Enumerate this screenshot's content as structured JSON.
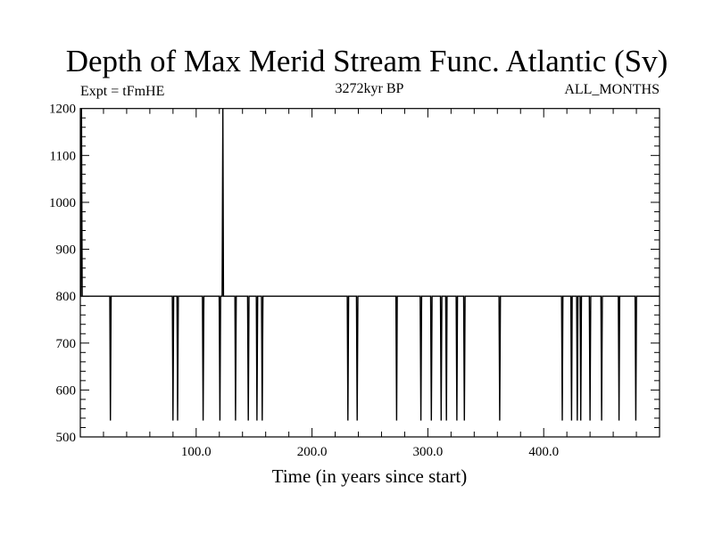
{
  "chart_data": {
    "type": "line",
    "title": "Depth of Max Merid Stream Func. Atlantic (Sv)",
    "subtitle_left": "Expt = tFmHE",
    "subtitle_center": "3272kyr BP",
    "subtitle_right": "ALL_MONTHS",
    "xlabel": "Time (in years since start)",
    "ylabel": "",
    "xlim": [
      0,
      500
    ],
    "ylim": [
      500,
      1200
    ],
    "x_ticks": [
      100,
      200,
      300,
      400
    ],
    "x_tick_labels": [
      "100.0",
      "200.0",
      "300.0",
      "400.0"
    ],
    "x_minor_step": 20,
    "y_ticks": [
      500,
      600,
      700,
      800,
      900,
      1000,
      1100,
      1200
    ],
    "y_tick_labels": [
      "500",
      "600",
      "700",
      "800",
      "900",
      "1000",
      "1100",
      "1200"
    ],
    "y_minor_step": 20,
    "grid": false,
    "baseline": 800,
    "spikes": [
      {
        "x": 1,
        "y": 1200
      },
      {
        "x": 123,
        "y": 1200
      }
    ],
    "dips": [
      {
        "x": 26,
        "y": 535
      },
      {
        "x": 80,
        "y": 535
      },
      {
        "x": 84,
        "y": 535
      },
      {
        "x": 106,
        "y": 535
      },
      {
        "x": 120.5,
        "y": 535
      },
      {
        "x": 134,
        "y": 535
      },
      {
        "x": 145,
        "y": 535
      },
      {
        "x": 152.5,
        "y": 535
      },
      {
        "x": 157,
        "y": 535
      },
      {
        "x": 231,
        "y": 535
      },
      {
        "x": 239,
        "y": 535
      },
      {
        "x": 273,
        "y": 535
      },
      {
        "x": 294,
        "y": 535
      },
      {
        "x": 303,
        "y": 535
      },
      {
        "x": 311.5,
        "y": 535
      },
      {
        "x": 316,
        "y": 535
      },
      {
        "x": 325,
        "y": 535
      },
      {
        "x": 331.5,
        "y": 535
      },
      {
        "x": 362,
        "y": 535
      },
      {
        "x": 416,
        "y": 535
      },
      {
        "x": 424,
        "y": 535
      },
      {
        "x": 429,
        "y": 535
      },
      {
        "x": 432,
        "y": 535
      },
      {
        "x": 440,
        "y": 535
      },
      {
        "x": 450,
        "y": 535
      },
      {
        "x": 465,
        "y": 535
      },
      {
        "x": 479.5,
        "y": 535
      }
    ],
    "line_color": "#000000"
  }
}
